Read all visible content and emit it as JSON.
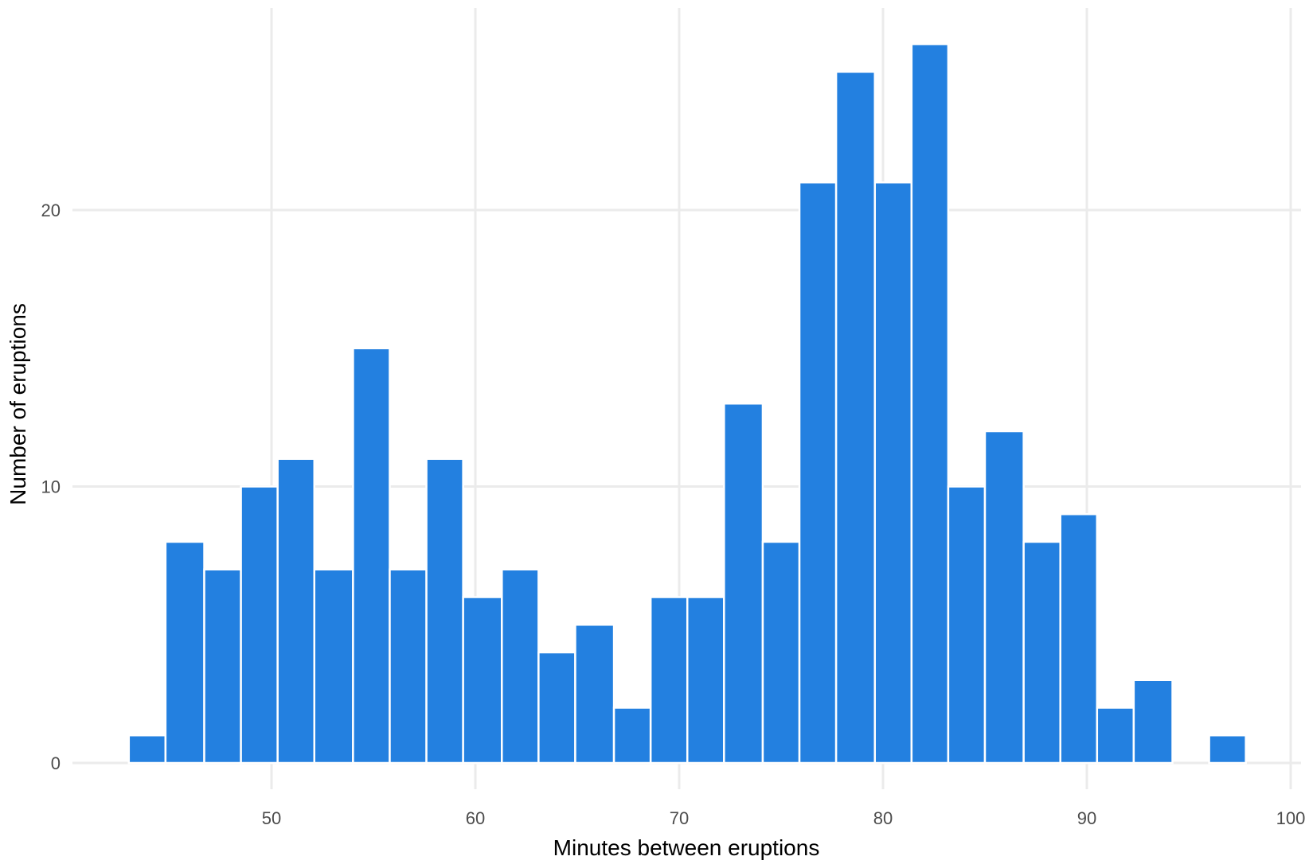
{
  "chart_data": {
    "type": "bar",
    "subtype": "histogram",
    "title": "",
    "xlabel": "Minutes between eruptions",
    "ylabel": "Number of eruptions",
    "bar_color": "#2380E0",
    "bar_outline": "#ffffff",
    "grid": true,
    "grid_color": "#EBEBEB",
    "legend": null,
    "xlim": [
      40.4,
      101.2
    ],
    "ylim": [
      0,
      26
    ],
    "x_ticks": [
      50,
      60,
      70,
      80,
      90,
      100
    ],
    "y_ticks": [
      0,
      10,
      20
    ],
    "bin_start": 43.0,
    "bin_width": 1.8276,
    "bins": [
      {
        "x0": 43.0,
        "x1": 44.8,
        "count": 1
      },
      {
        "x0": 44.8,
        "x1": 46.7,
        "count": 8
      },
      {
        "x0": 46.7,
        "x1": 48.5,
        "count": 7
      },
      {
        "x0": 48.5,
        "x1": 50.3,
        "count": 10
      },
      {
        "x0": 50.3,
        "x1": 52.1,
        "count": 11
      },
      {
        "x0": 52.1,
        "x1": 54.0,
        "count": 7
      },
      {
        "x0": 54.0,
        "x1": 55.8,
        "count": 15
      },
      {
        "x0": 55.8,
        "x1": 57.6,
        "count": 7
      },
      {
        "x0": 57.6,
        "x1": 59.4,
        "count": 11
      },
      {
        "x0": 59.4,
        "x1": 61.3,
        "count": 6
      },
      {
        "x0": 61.3,
        "x1": 63.1,
        "count": 7
      },
      {
        "x0": 63.1,
        "x1": 64.9,
        "count": 4
      },
      {
        "x0": 64.9,
        "x1": 66.8,
        "count": 5
      },
      {
        "x0": 66.8,
        "x1": 68.6,
        "count": 2
      },
      {
        "x0": 68.6,
        "x1": 70.4,
        "count": 6
      },
      {
        "x0": 70.4,
        "x1": 72.2,
        "count": 6
      },
      {
        "x0": 72.2,
        "x1": 74.1,
        "count": 13
      },
      {
        "x0": 74.1,
        "x1": 75.9,
        "count": 8
      },
      {
        "x0": 75.9,
        "x1": 77.7,
        "count": 21
      },
      {
        "x0": 77.7,
        "x1": 79.6,
        "count": 25
      },
      {
        "x0": 79.6,
        "x1": 81.4,
        "count": 21
      },
      {
        "x0": 81.4,
        "x1": 83.2,
        "count": 26
      },
      {
        "x0": 83.2,
        "x1": 85.0,
        "count": 10
      },
      {
        "x0": 85.0,
        "x1": 86.9,
        "count": 12
      },
      {
        "x0": 86.9,
        "x1": 88.7,
        "count": 8
      },
      {
        "x0": 88.7,
        "x1": 90.5,
        "count": 9
      },
      {
        "x0": 90.5,
        "x1": 92.3,
        "count": 2
      },
      {
        "x0": 92.3,
        "x1": 94.2,
        "count": 3
      },
      {
        "x0": 94.2,
        "x1": 96.0,
        "count": 0
      },
      {
        "x0": 96.0,
        "x1": 97.8,
        "count": 1
      }
    ],
    "categories": [
      "43.9",
      "45.7",
      "47.6",
      "49.4",
      "51.2",
      "53.1",
      "54.9",
      "56.7",
      "58.5",
      "60.4",
      "62.2",
      "64.0",
      "65.8",
      "67.7",
      "69.5",
      "71.3",
      "73.2",
      "75.0",
      "76.8",
      "78.6",
      "80.5",
      "82.3",
      "84.1",
      "86.0",
      "87.8",
      "89.6",
      "91.4",
      "93.3",
      "95.1",
      "96.9"
    ],
    "values": [
      1,
      8,
      7,
      10,
      11,
      7,
      15,
      7,
      11,
      6,
      7,
      4,
      5,
      2,
      6,
      6,
      13,
      8,
      21,
      25,
      21,
      26,
      10,
      12,
      8,
      9,
      2,
      3,
      0,
      1
    ]
  },
  "labels": {
    "x_axis_title": "Minutes between eruptions",
    "y_axis_title": "Number of eruptions"
  }
}
